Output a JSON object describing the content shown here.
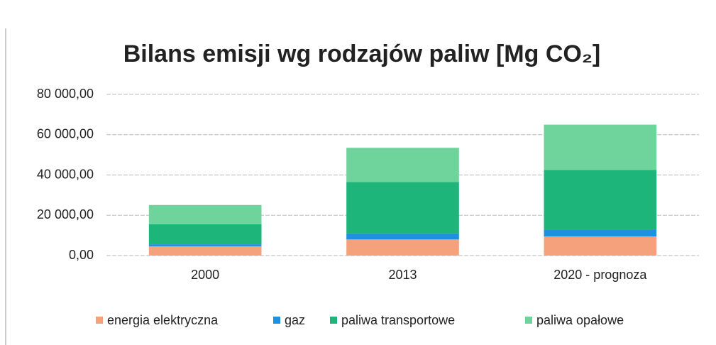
{
  "chart_data": {
    "type": "stacked_bar",
    "title": "Bilans emisji wg rodzajów paliw [Mg CO₂]",
    "categories": [
      "2000",
      "2013",
      "2020 - prognoza"
    ],
    "series": [
      {
        "name": "energia elektryczna",
        "color": "#f5a27c",
        "values": [
          4600,
          8000,
          9500
        ]
      },
      {
        "name": "gaz",
        "color": "#1f8fe0",
        "values": [
          1000,
          3000,
          3500
        ]
      },
      {
        "name": "paliwa transportowe",
        "color": "#1db57a",
        "values": [
          10000,
          25500,
          29500
        ]
      },
      {
        "name": "paliwa opałowe",
        "color": "#6fd39c",
        "values": [
          9500,
          17000,
          22500
        ]
      }
    ],
    "ylim": [
      0,
      80000
    ],
    "yticks": [
      {
        "value": 0,
        "label": "0,00"
      },
      {
        "value": 20000,
        "label": "20 000,00"
      },
      {
        "value": 40000,
        "label": "40 000,00"
      },
      {
        "value": 60000,
        "label": "60 000,00"
      },
      {
        "value": 80000,
        "label": "80 000,00"
      }
    ],
    "grid": true,
    "legend": "bottom"
  }
}
